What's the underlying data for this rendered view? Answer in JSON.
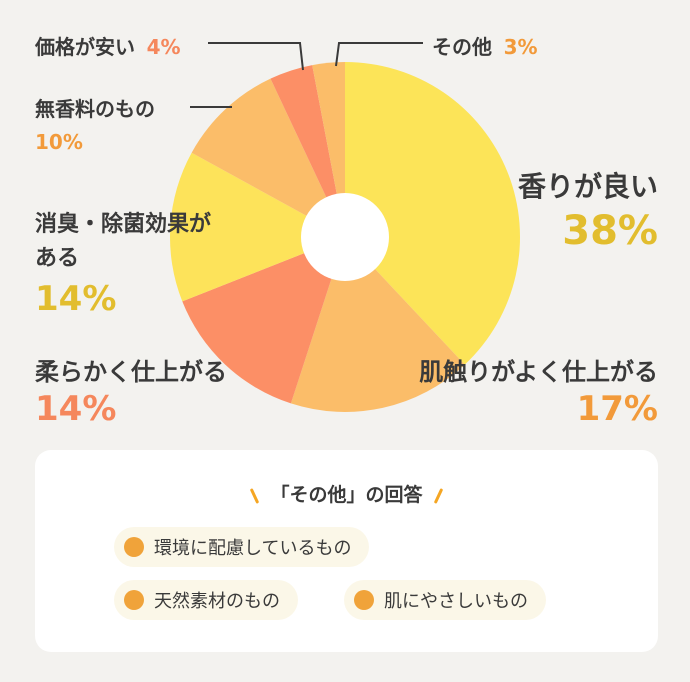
{
  "chart_data": {
    "type": "pie",
    "slices": [
      {
        "label": "香りが良い",
        "value": 38,
        "value_label": "38%",
        "color": "#fce458",
        "label_color": "#e2bd2e"
      },
      {
        "label": "肌触りがよく仕上がる",
        "value": 17,
        "value_label": "17%",
        "color": "#fbbd69",
        "label_color": "#f29a3a"
      },
      {
        "label": "柔らかく仕上がる",
        "value": 14,
        "value_label": "14%",
        "color": "#fc8f66",
        "label_color": "#f5875c"
      },
      {
        "label": "消臭・除菌効果がある",
        "label_line1": "消臭・除菌効果が",
        "label_line2": "ある",
        "value": 14,
        "value_label": "14%",
        "color": "#fde35a",
        "label_color": "#e2bd2e"
      },
      {
        "label": "無香料のもの",
        "value": 10,
        "value_label": "10%",
        "color": "#fbbd69",
        "label_color": "#f29a3a"
      },
      {
        "label": "価格が安い",
        "value": 4,
        "value_label": "4%",
        "color": "#fc8f66",
        "label_color": "#f5875c"
      },
      {
        "label": "その他",
        "value": 3,
        "value_label": "3%",
        "color": "#fbbd69",
        "label_color": "#f29a3a"
      }
    ]
  },
  "other_answers": {
    "title": "「その他」の回答",
    "items": [
      "環境に配慮しているもの",
      "天然素材のもの",
      "肌にやさしいもの"
    ],
    "dot_color": "#f0a33a",
    "pill_color": "#fbf7e8"
  }
}
